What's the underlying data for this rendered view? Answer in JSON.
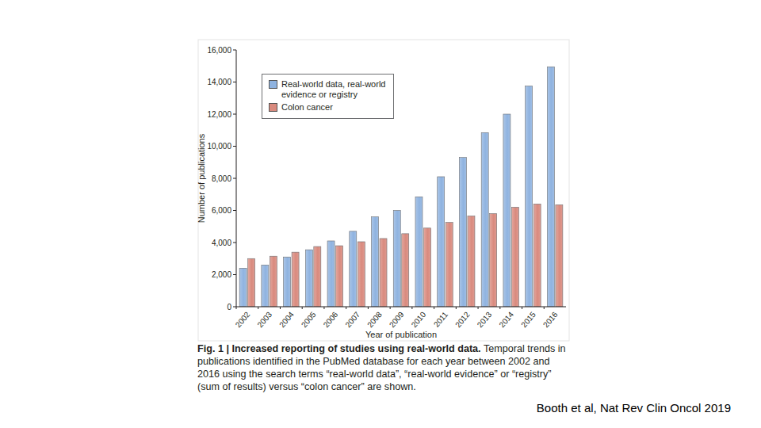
{
  "chart_data": {
    "type": "bar",
    "title": "Fig. 1 | Increased reporting of studies using real-world data.",
    "subtitle": "Temporal trends in publications identified in the PubMed database for each year between 2002 and 2016 using the search terms “real-world data”, “real-world evidence” or “registry” (sum of results) versus “colon cancer” are shown.",
    "x_label": "Year of publication",
    "y_label": "Number of publications",
    "annotations": [
      "Booth et al, Nat Rev Clin Oncol 2019"
    ],
    "categories": [
      "2002",
      "2003",
      "2004",
      "2005",
      "2006",
      "2007",
      "2008",
      "2009",
      "2010",
      "2011",
      "2012",
      "2013",
      "2014",
      "2015",
      "2016"
    ],
    "series": [
      {
        "name": "Real-world data, real-world evidence or registry",
        "color": "#8fb3e0",
        "values": [
          2400,
          2600,
          3100,
          3550,
          4100,
          4700,
          5600,
          6000,
          6850,
          8100,
          9300,
          10850,
          12000,
          13750,
          14950
        ]
      },
      {
        "name": "Colon cancer",
        "color": "#d98a7e",
        "values": [
          3000,
          3150,
          3400,
          3750,
          3800,
          4050,
          4250,
          4550,
          4900,
          5250,
          5650,
          5800,
          6200,
          6400,
          6350
        ]
      }
    ],
    "ylim": [
      0,
      16000
    ],
    "yticks": [
      0,
      {
        "value": 2000,
        "label": "2,000"
      },
      {
        "value": 4000,
        "label": "4,000"
      },
      {
        "value": 6000,
        "label": "6,000"
      },
      {
        "value": 8000,
        "label": "8,000"
      },
      {
        "value": 10000,
        "label": "10,000"
      },
      {
        "value": 12000,
        "label": "12,000"
      },
      {
        "value": 14000,
        "label": "14,000"
      },
      {
        "value": 16000,
        "label": "16,000"
      }
    ],
    "grid": false,
    "legend": "top-left"
  }
}
